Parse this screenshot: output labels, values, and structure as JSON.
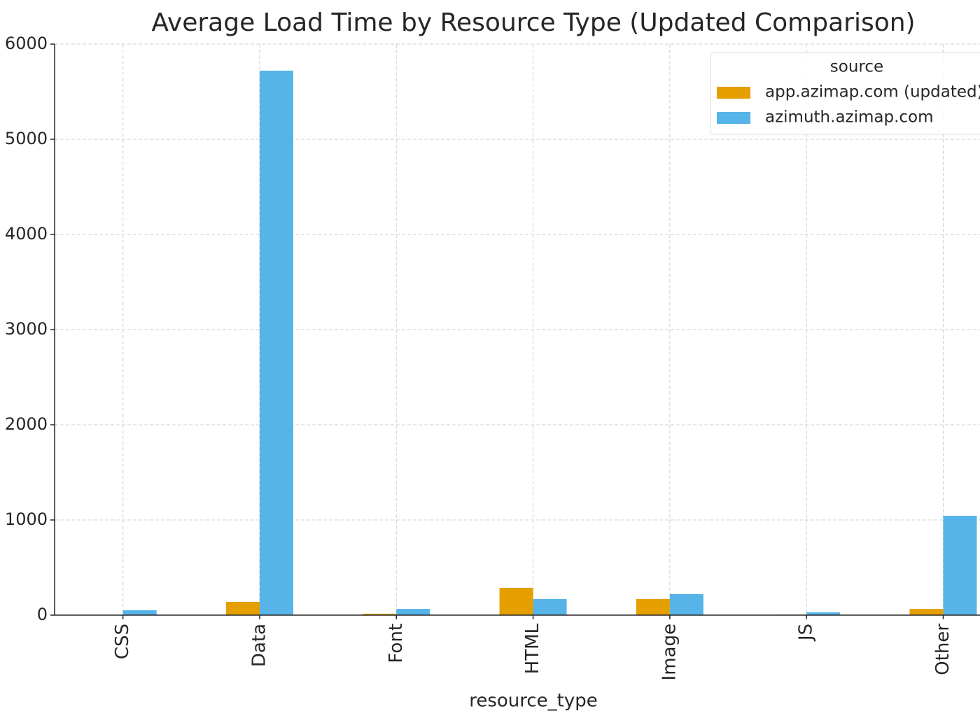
{
  "chart_data": {
    "type": "bar",
    "title": "Average Load Time by Resource Type (Updated Comparison)",
    "x_label": "resource_type",
    "categories": [
      "CSS",
      "Data",
      "Font",
      "HTML",
      "Image",
      "JS",
      "Other"
    ],
    "series": [
      {
        "name": "app.azimap.com (updated)",
        "color": "#e69f00",
        "values": [
          0,
          140,
          15,
          287,
          169,
          5,
          66
        ]
      },
      {
        "name": "azimuth.azimap.com",
        "color": "#56b4e9",
        "values": [
          51,
          5721,
          66,
          169,
          221,
          29,
          1044
        ]
      }
    ],
    "ylim": [
      0,
      6000
    ],
    "yticks": [
      0,
      1000,
      2000,
      3000,
      4000,
      5000,
      6000
    ],
    "grid": true,
    "legend_title": "source",
    "legend_loc": "upper right"
  }
}
